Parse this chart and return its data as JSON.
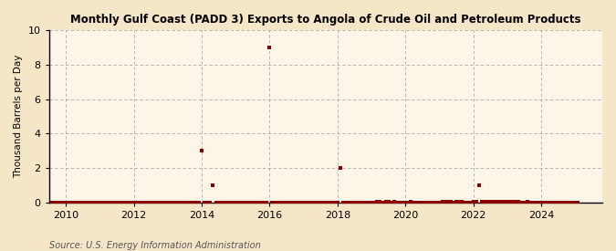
{
  "title": "Monthly Gulf Coast (PADD 3) Exports to Angola of Crude Oil and Petroleum Products",
  "ylabel": "Thousand Barrels per Day",
  "source_text": "Source: U.S. Energy Information Administration",
  "outer_bg_color": "#f5e6c8",
  "plot_bg_color": "#fdf6e8",
  "marker_color": "#8b0000",
  "marker_size": 3.5,
  "xlim": [
    2009.5,
    2025.8
  ],
  "ylim": [
    0,
    10
  ],
  "yticks": [
    0,
    2,
    4,
    6,
    8,
    10
  ],
  "xticks": [
    2010,
    2012,
    2014,
    2016,
    2018,
    2020,
    2022,
    2024
  ],
  "data_points": [
    [
      2009.583,
      0.0
    ],
    [
      2009.667,
      0.0
    ],
    [
      2009.75,
      0.0
    ],
    [
      2009.833,
      0.0
    ],
    [
      2009.917,
      0.0
    ],
    [
      2010.0,
      0.0
    ],
    [
      2010.083,
      0.0
    ],
    [
      2010.167,
      0.0
    ],
    [
      2010.25,
      0.0
    ],
    [
      2010.333,
      0.0
    ],
    [
      2010.417,
      0.0
    ],
    [
      2010.5,
      0.0
    ],
    [
      2010.583,
      0.0
    ],
    [
      2010.667,
      0.0
    ],
    [
      2010.75,
      0.0
    ],
    [
      2010.833,
      0.0
    ],
    [
      2010.917,
      0.0
    ],
    [
      2011.0,
      0.0
    ],
    [
      2011.083,
      0.0
    ],
    [
      2011.167,
      0.0
    ],
    [
      2011.25,
      0.0
    ],
    [
      2011.333,
      0.0
    ],
    [
      2011.417,
      0.0
    ],
    [
      2011.5,
      0.0
    ],
    [
      2011.583,
      0.0
    ],
    [
      2011.667,
      0.0
    ],
    [
      2011.75,
      0.0
    ],
    [
      2011.833,
      0.0
    ],
    [
      2011.917,
      0.0
    ],
    [
      2012.0,
      0.0
    ],
    [
      2012.083,
      0.0
    ],
    [
      2012.167,
      0.0
    ],
    [
      2012.25,
      0.0
    ],
    [
      2012.333,
      0.0
    ],
    [
      2012.417,
      0.0
    ],
    [
      2012.5,
      0.0
    ],
    [
      2012.583,
      0.0
    ],
    [
      2012.667,
      0.0
    ],
    [
      2012.75,
      0.0
    ],
    [
      2012.833,
      0.0
    ],
    [
      2012.917,
      0.0
    ],
    [
      2013.0,
      0.0
    ],
    [
      2013.083,
      0.0
    ],
    [
      2013.167,
      0.0
    ],
    [
      2013.25,
      0.0
    ],
    [
      2013.333,
      0.0
    ],
    [
      2013.417,
      0.0
    ],
    [
      2013.5,
      0.0
    ],
    [
      2013.583,
      0.0
    ],
    [
      2013.667,
      0.0
    ],
    [
      2013.75,
      0.0
    ],
    [
      2013.833,
      0.0
    ],
    [
      2013.917,
      0.0
    ],
    [
      2014.0,
      3.0
    ],
    [
      2014.083,
      0.0
    ],
    [
      2014.167,
      0.0
    ],
    [
      2014.25,
      0.0
    ],
    [
      2014.333,
      1.0
    ],
    [
      2014.417,
      0.0
    ],
    [
      2014.5,
      0.0
    ],
    [
      2014.583,
      0.0
    ],
    [
      2014.667,
      0.0
    ],
    [
      2014.75,
      0.0
    ],
    [
      2014.833,
      0.0
    ],
    [
      2014.917,
      0.0
    ],
    [
      2015.0,
      0.0
    ],
    [
      2015.083,
      0.0
    ],
    [
      2015.167,
      0.0
    ],
    [
      2015.25,
      0.0
    ],
    [
      2015.333,
      0.0
    ],
    [
      2015.417,
      0.0
    ],
    [
      2015.5,
      0.0
    ],
    [
      2015.583,
      0.0
    ],
    [
      2015.667,
      0.0
    ],
    [
      2015.75,
      0.0
    ],
    [
      2015.833,
      0.0
    ],
    [
      2015.917,
      0.0
    ],
    [
      2016.0,
      9.0
    ],
    [
      2016.083,
      0.0
    ],
    [
      2016.167,
      0.0
    ],
    [
      2016.25,
      0.0
    ],
    [
      2016.333,
      0.0
    ],
    [
      2016.417,
      0.0
    ],
    [
      2016.5,
      0.0
    ],
    [
      2016.583,
      0.0
    ],
    [
      2016.667,
      0.0
    ],
    [
      2016.75,
      0.0
    ],
    [
      2016.833,
      0.0
    ],
    [
      2016.917,
      0.0
    ],
    [
      2017.0,
      0.0
    ],
    [
      2017.083,
      0.0
    ],
    [
      2017.167,
      0.0
    ],
    [
      2017.25,
      0.0
    ],
    [
      2017.333,
      0.0
    ],
    [
      2017.417,
      0.0
    ],
    [
      2017.5,
      0.0
    ],
    [
      2017.583,
      0.0
    ],
    [
      2017.667,
      0.0
    ],
    [
      2017.75,
      0.0
    ],
    [
      2017.833,
      0.0
    ],
    [
      2017.917,
      0.0
    ],
    [
      2018.0,
      0.0
    ],
    [
      2018.083,
      2.0
    ],
    [
      2018.167,
      0.0
    ],
    [
      2018.25,
      0.0
    ],
    [
      2018.333,
      0.0
    ],
    [
      2018.417,
      0.0
    ],
    [
      2018.5,
      0.0
    ],
    [
      2018.583,
      0.0
    ],
    [
      2018.667,
      0.0
    ],
    [
      2018.75,
      0.0
    ],
    [
      2018.833,
      0.0
    ],
    [
      2018.917,
      0.0
    ],
    [
      2019.0,
      0.0
    ],
    [
      2019.083,
      0.0
    ],
    [
      2019.167,
      0.05
    ],
    [
      2019.25,
      0.05
    ],
    [
      2019.333,
      0.0
    ],
    [
      2019.417,
      0.05
    ],
    [
      2019.5,
      0.05
    ],
    [
      2019.583,
      0.0
    ],
    [
      2019.667,
      0.05
    ],
    [
      2019.75,
      0.0
    ],
    [
      2019.833,
      0.0
    ],
    [
      2019.917,
      0.0
    ],
    [
      2020.0,
      0.0
    ],
    [
      2020.083,
      0.0
    ],
    [
      2020.167,
      0.05
    ],
    [
      2020.25,
      0.0
    ],
    [
      2020.333,
      0.0
    ],
    [
      2020.417,
      0.0
    ],
    [
      2020.5,
      0.0
    ],
    [
      2020.583,
      0.0
    ],
    [
      2020.667,
      0.0
    ],
    [
      2020.75,
      0.0
    ],
    [
      2020.833,
      0.0
    ],
    [
      2020.917,
      0.0
    ],
    [
      2021.0,
      0.0
    ],
    [
      2021.083,
      0.05
    ],
    [
      2021.167,
      0.05
    ],
    [
      2021.25,
      0.05
    ],
    [
      2021.333,
      0.05
    ],
    [
      2021.417,
      0.0
    ],
    [
      2021.5,
      0.05
    ],
    [
      2021.583,
      0.05
    ],
    [
      2021.667,
      0.05
    ],
    [
      2021.75,
      0.0
    ],
    [
      2021.833,
      0.0
    ],
    [
      2021.917,
      0.0
    ],
    [
      2022.0,
      0.05
    ],
    [
      2022.083,
      0.05
    ],
    [
      2022.167,
      1.0
    ],
    [
      2022.25,
      0.05
    ],
    [
      2022.333,
      0.05
    ],
    [
      2022.417,
      0.05
    ],
    [
      2022.5,
      0.05
    ],
    [
      2022.583,
      0.05
    ],
    [
      2022.667,
      0.05
    ],
    [
      2022.75,
      0.05
    ],
    [
      2022.833,
      0.05
    ],
    [
      2022.917,
      0.05
    ],
    [
      2023.0,
      0.05
    ],
    [
      2023.083,
      0.05
    ],
    [
      2023.167,
      0.05
    ],
    [
      2023.25,
      0.05
    ],
    [
      2023.333,
      0.05
    ],
    [
      2023.417,
      0.0
    ],
    [
      2023.5,
      0.0
    ],
    [
      2023.583,
      0.05
    ],
    [
      2023.667,
      0.0
    ],
    [
      2023.75,
      0.0
    ],
    [
      2023.833,
      0.0
    ],
    [
      2023.917,
      0.0
    ],
    [
      2024.0,
      0.0
    ],
    [
      2024.083,
      0.0
    ],
    [
      2024.167,
      0.0
    ],
    [
      2024.25,
      0.0
    ],
    [
      2024.333,
      0.0
    ],
    [
      2024.417,
      0.0
    ],
    [
      2024.5,
      0.0
    ],
    [
      2024.583,
      0.0
    ],
    [
      2024.667,
      0.0
    ],
    [
      2024.75,
      0.0
    ],
    [
      2024.833,
      0.0
    ],
    [
      2024.917,
      0.0
    ],
    [
      2025.0,
      0.0
    ],
    [
      2025.083,
      0.0
    ]
  ]
}
